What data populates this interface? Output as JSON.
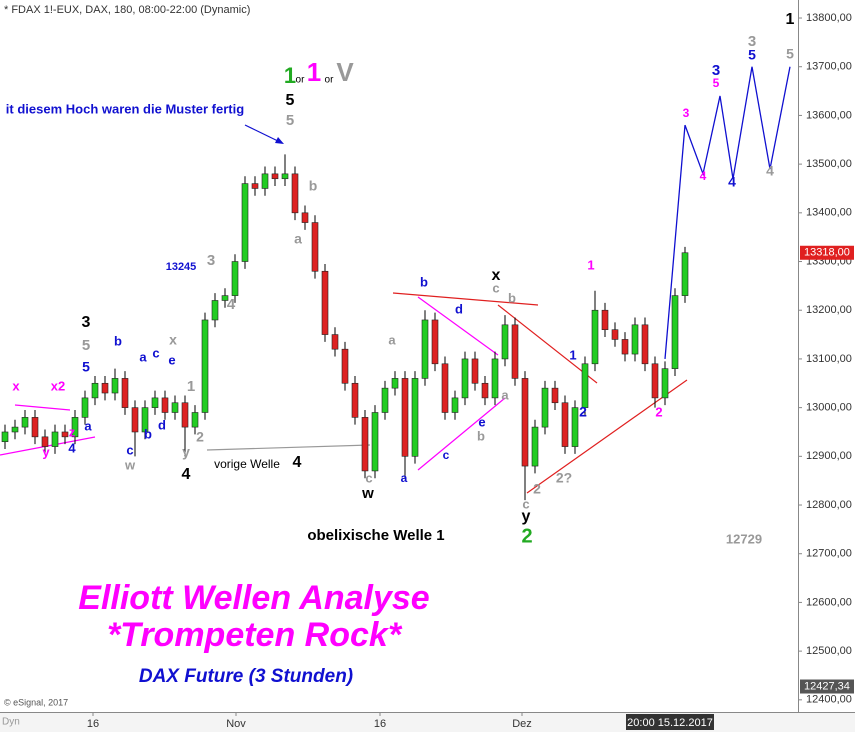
{
  "chart_data": {
    "type": "candlestick",
    "title": "* FDAX 1!-EUX, DAX, 180, 08:00-22:00 (Dynamic)",
    "credit": "© eSignal, 2017",
    "mode": "Dyn",
    "open": [
      12930,
      12950,
      12960,
      12980,
      12940,
      12920,
      12950,
      12940,
      12980,
      13020,
      13050,
      13030,
      13060,
      13000,
      12950,
      13000,
      13020,
      12990,
      13010,
      12960,
      12990,
      13180,
      13220,
      13230,
      13300,
      13460,
      13450,
      13480,
      13470,
      13480,
      13400,
      13380,
      13280,
      13150,
      13120,
      13050,
      12980,
      12870,
      12990,
      13040,
      13060,
      12900,
      13060,
      13180,
      13090,
      12990,
      13020,
      13100,
      13050,
      13020,
      13100,
      13170,
      13060,
      12880,
      12960,
      13040,
      13010,
      12920,
      13000,
      13090,
      13200,
      13160,
      13140,
      13110,
      13170,
      13090,
      13020,
      13080,
      13230
    ],
    "high": [
      12965,
      12975,
      12995,
      12995,
      12955,
      12965,
      12965,
      12995,
      13035,
      13065,
      13065,
      13080,
      13075,
      13015,
      13015,
      13035,
      13035,
      13025,
      13025,
      13005,
      13195,
      13235,
      13245,
      13315,
      13475,
      13475,
      13495,
      13495,
      13520,
      13495,
      13415,
      13395,
      13295,
      13165,
      13135,
      13065,
      12995,
      13005,
      13055,
      13075,
      13075,
      13075,
      13200,
      13195,
      13105,
      13035,
      13115,
      13115,
      13065,
      13115,
      13190,
      13185,
      13075,
      12975,
      13055,
      13055,
      13025,
      13015,
      13105,
      13240,
      13215,
      13175,
      13155,
      13185,
      13185,
      13105,
      13095,
      13245,
      13330
    ],
    "low": [
      12915,
      12935,
      12945,
      12925,
      12905,
      12905,
      12925,
      12925,
      12965,
      13005,
      13015,
      13015,
      12985,
      12900,
      12935,
      12985,
      12975,
      12975,
      12900,
      12945,
      12975,
      13165,
      13205,
      13215,
      13285,
      13435,
      13435,
      13455,
      13455,
      13385,
      13365,
      13265,
      13135,
      13105,
      13035,
      12965,
      12855,
      12855,
      12975,
      13025,
      12855,
      12885,
      13045,
      13075,
      12975,
      12975,
      13005,
      13035,
      13005,
      13005,
      13085,
      13045,
      12810,
      12865,
      12945,
      12995,
      12905,
      12905,
      12985,
      13075,
      13145,
      13125,
      13095,
      13095,
      13075,
      13000,
      13005,
      13065,
      13215
    ],
    "close": [
      12950,
      12960,
      12980,
      12940,
      12920,
      12950,
      12940,
      12980,
      13020,
      13050,
      13030,
      13060,
      13000,
      12950,
      13000,
      13020,
      12990,
      13010,
      12960,
      12990,
      13180,
      13220,
      13230,
      13300,
      13460,
      13450,
      13480,
      13470,
      13480,
      13400,
      13380,
      13280,
      13150,
      13120,
      13050,
      12980,
      12870,
      12990,
      13040,
      13060,
      12900,
      13060,
      13180,
      13090,
      12990,
      13020,
      13100,
      13050,
      13020,
      13100,
      13170,
      13060,
      12880,
      12960,
      13040,
      13010,
      12920,
      13000,
      13090,
      13200,
      13160,
      13140,
      13110,
      13170,
      13090,
      13020,
      13080,
      13230,
      13318
    ],
    "up_color": "#22cc22",
    "down_color": "#dd2222",
    "projection": {
      "color": "#1010d0",
      "x": [
        66,
        68,
        69.8,
        71.5,
        72.8,
        74.7,
        76.5,
        78.5
      ],
      "values": [
        13100,
        13580,
        13480,
        13640,
        13470,
        13700,
        13490,
        13700
      ]
    },
    "xlim": [
      -0.5,
      79.3
    ],
    "ylim": [
      12375,
      13837
    ],
    "xticks": [
      {
        "value": 8.8,
        "label": "16"
      },
      {
        "value": 23.1,
        "label": "Nov"
      },
      {
        "value": 37.5,
        "label": "16"
      },
      {
        "value": 51.7,
        "label": "Dez"
      }
    ],
    "x_cursor": {
      "value": 66.5,
      "label": "20:00 15.12.2017"
    },
    "yticks": [
      {
        "value": 12400,
        "label": "12400,00"
      },
      {
        "value": 12500,
        "label": "12500,00"
      },
      {
        "value": 12600,
        "label": "12600,00"
      },
      {
        "value": 12700,
        "label": "12700,00"
      },
      {
        "value": 12800,
        "label": "12800,00"
      },
      {
        "value": 12900,
        "label": "12900,00"
      },
      {
        "value": 13000,
        "label": "13000,00"
      },
      {
        "value": 13100,
        "label": "13100,00"
      },
      {
        "value": 13200,
        "label": "13200,00"
      },
      {
        "value": 13300,
        "label": "13300,00"
      },
      {
        "value": 13400,
        "label": "13400,00"
      },
      {
        "value": 13500,
        "label": "13500,00"
      },
      {
        "value": 13600,
        "label": "13600,00"
      },
      {
        "value": 13700,
        "label": "13700,00"
      },
      {
        "value": 13800,
        "label": "13800,00"
      }
    ],
    "price_labels": [
      {
        "value": 13318,
        "label": "13318,00",
        "color": "#e02020"
      },
      {
        "value": 12427.34,
        "label": "12427,34",
        "color": "#555555"
      }
    ],
    "annotations": [
      {
        "text": "1",
        "color": "#22aa22"
      },
      {
        "text": "or",
        "color": "#000000"
      },
      {
        "text": "1",
        "color": "#ff00ff"
      },
      {
        "text": "or",
        "color": "#000000"
      },
      {
        "text": "V",
        "color": "#999999"
      },
      {
        "text": "5",
        "color": "#000000"
      },
      {
        "text": "5",
        "color": "#999999"
      },
      {
        "text": "it diesem Hoch waren die Muster fertig",
        "color": "#1010d0"
      },
      {
        "text": "b",
        "color": "#999999"
      },
      {
        "text": "a",
        "color": "#999999"
      },
      {
        "text": "13245",
        "color": "#1010d0"
      },
      {
        "text": "3",
        "color": "#999999"
      },
      {
        "text": "4",
        "color": "#999999"
      },
      {
        "text": "3",
        "color": "#000000"
      },
      {
        "text": "5",
        "color": "#999999"
      },
      {
        "text": "5",
        "color": "#1010d0"
      },
      {
        "text": "b",
        "color": "#1010d0"
      },
      {
        "text": "a",
        "color": "#1010d0"
      },
      {
        "text": "c",
        "color": "#1010d0"
      },
      {
        "text": "x",
        "color": "#999999"
      },
      {
        "text": "e",
        "color": "#1010d0"
      },
      {
        "text": "1",
        "color": "#999999"
      },
      {
        "text": "x",
        "color": "#ff00ff"
      },
      {
        "text": "x2",
        "color": "#ff00ff"
      },
      {
        "text": "z",
        "color": "#ff00ff"
      },
      {
        "text": "a",
        "color": "#1010d0"
      },
      {
        "text": "y",
        "color": "#ff00ff"
      },
      {
        "text": "4",
        "color": "#1010d0"
      },
      {
        "text": "c",
        "color": "#1010d0"
      },
      {
        "text": "w",
        "color": "#999999"
      },
      {
        "text": "b",
        "color": "#1010d0"
      },
      {
        "text": "d",
        "color": "#1010d0"
      },
      {
        "text": "2",
        "color": "#999999"
      },
      {
        "text": "y",
        "color": "#999999"
      },
      {
        "text": "4",
        "color": "#000000"
      },
      {
        "text": "vorige Welle",
        "color": "#000000"
      },
      {
        "text": "4",
        "color": "#000000"
      },
      {
        "text": "c",
        "color": "#999999"
      },
      {
        "text": "w",
        "color": "#000000"
      },
      {
        "text": "a",
        "color": "#1010d0"
      },
      {
        "text": "c",
        "color": "#1010d0"
      },
      {
        "text": "e",
        "color": "#1010d0"
      },
      {
        "text": "b",
        "color": "#999999"
      },
      {
        "text": "a",
        "color": "#999999"
      },
      {
        "text": "d",
        "color": "#1010d0"
      },
      {
        "text": "b",
        "color": "#1010d0"
      },
      {
        "text": "a",
        "color": "#999999"
      },
      {
        "text": "x",
        "color": "#000000"
      },
      {
        "text": "c",
        "color": "#999999"
      },
      {
        "text": "b",
        "color": "#999999"
      },
      {
        "text": "c",
        "color": "#999999"
      },
      {
        "text": "y",
        "color": "#000000"
      },
      {
        "text": "2",
        "color": "#22aa22"
      },
      {
        "text": "2",
        "color": "#999999"
      },
      {
        "text": "2?",
        "color": "#999999"
      },
      {
        "text": "1",
        "color": "#1010d0"
      },
      {
        "text": "2",
        "color": "#1010d0"
      },
      {
        "text": "1",
        "color": "#ff00ff"
      },
      {
        "text": "obelixische Welle 1",
        "color": "#000000"
      },
      {
        "text": "2",
        "color": "#ff00ff"
      },
      {
        "text": "12729",
        "color": "#999999"
      },
      {
        "text": "3",
        "color": "#ff00ff"
      },
      {
        "text": "4",
        "color": "#ff00ff"
      },
      {
        "text": "3",
        "color": "#1010d0"
      },
      {
        "text": "5",
        "color": "#ff00ff"
      },
      {
        "text": "4",
        "color": "#1010d0"
      },
      {
        "text": "3",
        "color": "#999999"
      },
      {
        "text": "5",
        "color": "#1010d0"
      },
      {
        "text": "4",
        "color": "#999999"
      },
      {
        "text": "1",
        "color": "#000000"
      },
      {
        "text": "5",
        "color": "#999999"
      },
      {
        "text": "Elliott Wellen Analyse",
        "color": "#ff00ff"
      },
      {
        "text": "*Trompeten Rock*",
        "color": "#ff00ff"
      },
      {
        "text": "DAX Future (3 Stunden)",
        "color": "#1010d0"
      }
    ]
  }
}
